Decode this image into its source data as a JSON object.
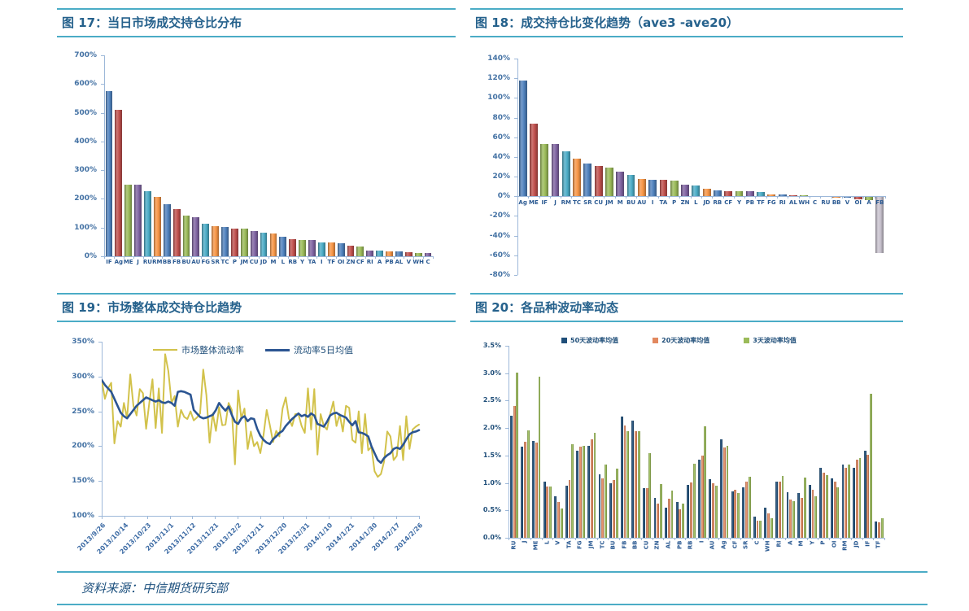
{
  "page": {
    "background": "#ffffff",
    "accent_rule_color": "#4BACC6",
    "title_color": "#25618C",
    "axis_color": "#9DB8D9",
    "axis_label_color": "#4472A4"
  },
  "figures": {
    "fig17": {
      "title": "图 17：当日市场成交持仓比分布"
    },
    "fig18": {
      "title": "图 18：成交持仓比变化趋势（ave3 -ave20）"
    },
    "fig19": {
      "title": "图 19：市场整体成交持仓比趋势"
    },
    "fig20": {
      "title": "图 20：各品种波动率动态"
    }
  },
  "footer": {
    "source": "资料来源：中信期货研究部"
  },
  "chart_data": [
    {
      "id": "fig17",
      "type": "bar",
      "title": "当日市场成交持仓比分布",
      "unit": "%",
      "ylim": [
        0,
        700
      ],
      "ystep": 100,
      "ytick_decimals": 0,
      "grid": false,
      "legend_position": "none",
      "palette": [
        "#4F81BD",
        "#C0504D",
        "#9BBB59",
        "#8064A2",
        "#4BACC6",
        "#F79646"
      ],
      "categories": [
        "IF",
        "Ag",
        "ME",
        "J",
        "RU",
        "RM",
        "BB",
        "FB",
        "BU",
        "AU",
        "FG",
        "SR",
        "TC",
        "P",
        "JM",
        "CU",
        "JD",
        "M",
        "L",
        "RB",
        "Y",
        "TA",
        "I",
        "TF",
        "OI",
        "ZN",
        "CF",
        "RI",
        "A",
        "PB",
        "AL",
        "V",
        "WH",
        "C"
      ],
      "values": [
        575,
        510,
        248,
        248,
        227,
        208,
        181,
        163,
        143,
        135,
        112,
        106,
        103,
        97,
        97,
        88,
        81,
        78,
        67,
        59,
        56,
        56,
        49,
        49,
        46,
        36,
        33,
        20,
        20,
        16,
        16,
        14,
        10,
        10
      ]
    },
    {
      "id": "fig18",
      "type": "bar",
      "title": "成交持仓比变化趋势（ave3 -ave20）",
      "unit": "%",
      "ylim": [
        -80,
        140
      ],
      "ystep": 20,
      "ytick_decimals": 0,
      "grid": false,
      "legend_position": "none",
      "palette": [
        "#4F81BD",
        "#C0504D",
        "#9BBB59",
        "#8064A2",
        "#4BACC6",
        "#F79646"
      ],
      "color_overrides": {
        "33": "#C8C2CE"
      },
      "categories": [
        "Ag",
        "ME",
        "IF",
        "J",
        "RM",
        "TC",
        "SR",
        "CU",
        "JM",
        "M",
        "BU",
        "AU",
        "I",
        "TA",
        "P",
        "ZN",
        "L",
        "JD",
        "RB",
        "CF",
        "Y",
        "PB",
        "TF",
        "FG",
        "RI",
        "AL",
        "WH",
        "C",
        "RU",
        "BB",
        "V",
        "OI",
        "A",
        "FB"
      ],
      "values": [
        118,
        74,
        53,
        53,
        46,
        38,
        33,
        31,
        29,
        25,
        22,
        18,
        17,
        17,
        16,
        12,
        11,
        8,
        6,
        5,
        5,
        5,
        4,
        2,
        2,
        1,
        1,
        0,
        0,
        -1,
        -1,
        -2,
        -3,
        -57
      ]
    },
    {
      "id": "fig19",
      "type": "line",
      "title": "市场整体成交持仓比趋势",
      "unit": "%",
      "ylim": [
        100,
        350
      ],
      "ystep": 50,
      "ytick_decimals": 0,
      "grid": false,
      "legend_position": "top",
      "x_tick_labels": [
        "2013/9/26",
        "2013/10/14",
        "2013/10/23",
        "2013/11/1",
        "2013/11/12",
        "2013/11/21",
        "2013/12/2",
        "2013/12/11",
        "2013/12/20",
        "2013/12/31",
        "2014/1/10",
        "2014/1/21",
        "2014/1/30",
        "2014/2/17",
        "2014/2/26"
      ],
      "series": [
        {
          "name": "市场整体流动率",
          "color": "#D2C24B",
          "values": [
            295,
            268,
            283,
            291,
            204,
            236,
            228,
            262,
            240,
            303,
            258,
            244,
            282,
            276,
            225,
            262,
            296,
            226,
            283,
            219,
            332,
            308,
            262,
            272,
            228,
            252,
            242,
            239,
            250,
            237,
            241,
            247,
            310,
            273,
            205,
            247,
            222,
            256,
            230,
            231,
            262,
            252,
            174,
            280,
            240,
            254,
            196,
            221,
            200,
            206,
            190,
            216,
            252,
            230,
            206,
            222,
            214,
            254,
            270,
            240,
            229,
            246,
            246,
            229,
            219,
            283,
            224,
            282,
            188,
            246,
            229,
            224,
            246,
            264,
            229,
            246,
            221,
            258,
            255,
            209,
            205,
            250,
            190,
            246,
            194,
            199,
            164,
            156,
            160,
            178,
            221,
            214,
            180,
            186,
            229,
            180,
            243,
            196,
            224,
            228,
            231
          ]
        },
        {
          "name": "流动率5日均值",
          "color": "#2B5592",
          "values": [
            295,
            288,
            283,
            278,
            268,
            258,
            248,
            243,
            240,
            246,
            252,
            258,
            262,
            266,
            270,
            268,
            266,
            264,
            266,
            263,
            262,
            264,
            262,
            258,
            278,
            279,
            278,
            276,
            274,
            252,
            247,
            242,
            240,
            241,
            243,
            245,
            252,
            262,
            256,
            251,
            257,
            245,
            235,
            232,
            240,
            243,
            236,
            240,
            239,
            225,
            215,
            209,
            205,
            203,
            210,
            214,
            219,
            222,
            229,
            234,
            239,
            243,
            247,
            243,
            245,
            242,
            247,
            244,
            232,
            230,
            228,
            235,
            244,
            247,
            248,
            245,
            243,
            241,
            235,
            230,
            236,
            220,
            219,
            217,
            214,
            200,
            190,
            180,
            176,
            183,
            187,
            190,
            196,
            198,
            196,
            202,
            210,
            217,
            220,
            221,
            223
          ]
        }
      ]
    },
    {
      "id": "fig20",
      "type": "bar",
      "grouped": true,
      "title": "各品种波动率动态",
      "unit": "%",
      "ylim": [
        0,
        3.5
      ],
      "ystep": 0.5,
      "ytick_decimals": 1,
      "grid": false,
      "legend_position": "top",
      "categories": [
        "RU",
        "J",
        "ME",
        "L",
        "V",
        "TA",
        "FG",
        "JM",
        "TC",
        "BU",
        "FB",
        "BB",
        "CU",
        "ZN",
        "AL",
        "PB",
        "RB",
        "I",
        "AU",
        "Ag",
        "CF",
        "SR",
        "C",
        "WH",
        "RI",
        "A",
        "M",
        "Y",
        "P",
        "OI",
        "RM",
        "JD",
        "IF",
        "TF"
      ],
      "series": [
        {
          "name": "50天波动率均值",
          "color": "#1F4E79",
          "values": [
            2.23,
            1.66,
            1.76,
            1.03,
            0.76,
            0.95,
            1.58,
            1.67,
            1.16,
            1.0,
            2.21,
            2.13,
            0.91,
            0.72,
            0.55,
            0.65,
            0.97,
            1.42,
            1.07,
            1.8,
            0.85,
            0.92,
            0.39,
            0.55,
            1.02,
            0.83,
            0.81,
            0.96,
            1.28,
            1.08,
            1.33,
            1.28,
            1.59,
            0.3
          ]
        },
        {
          "name": "20天波动率均值",
          "color": "#E2885F",
          "values": [
            2.41,
            1.75,
            1.74,
            0.93,
            0.66,
            1.06,
            1.66,
            1.8,
            1.09,
            1.06,
            2.05,
            1.94,
            0.91,
            0.62,
            0.71,
            0.52,
            1.01,
            1.5,
            1.0,
            1.65,
            0.87,
            1.02,
            0.31,
            0.44,
            1.03,
            0.7,
            0.72,
            0.88,
            1.18,
            1.02,
            1.27,
            1.42,
            1.52,
            0.28
          ]
        },
        {
          "name": "3天波动率均值",
          "color": "#9BBB59",
          "values": [
            3.01,
            1.96,
            2.93,
            0.94,
            0.53,
            1.7,
            1.68,
            1.92,
            1.33,
            1.26,
            1.95,
            1.95,
            1.54,
            0.98,
            0.86,
            0.62,
            1.35,
            2.03,
            0.95,
            1.67,
            0.81,
            1.11,
            0.31,
            0.36,
            1.12,
            0.67,
            1.1,
            0.76,
            1.14,
            0.92,
            1.34,
            1.46,
            2.63,
            0.36
          ]
        }
      ]
    }
  ]
}
